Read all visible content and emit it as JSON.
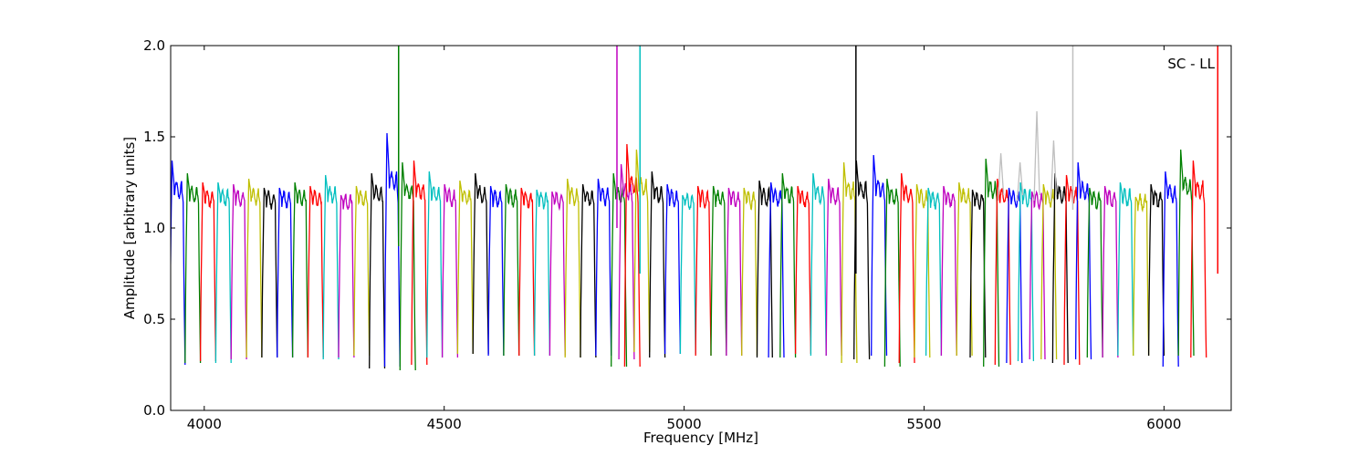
{
  "chart_data": {
    "type": "line",
    "title": "",
    "xlabel": "Frequency [MHz]",
    "ylabel": "Amplitude [arbitrary units]",
    "xlim": [
      3930,
      6140
    ],
    "ylim": [
      0,
      2.0
    ],
    "xticks": [
      4000,
      4500,
      5000,
      5500,
      6000
    ],
    "xtick_labels": [
      "4000",
      "4500",
      "5000",
      "5500",
      "6000"
    ],
    "yticks": [
      0,
      0.5,
      1.0,
      1.5,
      2.0
    ],
    "ytick_labels": [
      "0.0",
      "0.5",
      "1.0",
      "1.5",
      "2.0"
    ],
    "annotation": "SC - LL",
    "grid": false,
    "legend": "none",
    "band_width_mhz": 32,
    "channels": [
      {
        "start": 3928,
        "peak": 1.37,
        "min": 0.25,
        "color": "#0000ff"
      },
      {
        "start": 3960,
        "peak": 1.3,
        "min": 0.26,
        "color": "#008000"
      },
      {
        "start": 3992,
        "peak": 1.25,
        "min": 0.27,
        "color": "#ff0000"
      },
      {
        "start": 4024,
        "peak": 1.25,
        "min": 0.26,
        "color": "#00bfbf"
      },
      {
        "start": 4056,
        "peak": 1.24,
        "min": 0.28,
        "color": "#bf00bf"
      },
      {
        "start": 4088,
        "peak": 1.27,
        "min": 0.29,
        "color": "#bfbf00"
      },
      {
        "start": 4120,
        "peak": 1.22,
        "min": 0.29,
        "color": "#000000"
      },
      {
        "start": 4152,
        "peak": 1.22,
        "min": 0.29,
        "color": "#0000ff"
      },
      {
        "start": 4184,
        "peak": 1.25,
        "min": 0.29,
        "color": "#008000"
      },
      {
        "start": 4216,
        "peak": 1.23,
        "min": 0.29,
        "color": "#ff0000"
      },
      {
        "start": 4248,
        "peak": 1.29,
        "min": 0.28,
        "color": "#00bfbf"
      },
      {
        "start": 4280,
        "peak": 1.18,
        "min": 0.29,
        "color": "#bf00bf"
      },
      {
        "start": 4312,
        "peak": 1.23,
        "min": 0.3,
        "color": "#bfbf00"
      },
      {
        "start": 4344,
        "peak": 1.3,
        "min": 0.23,
        "color": "#000000"
      },
      {
        "start": 4376,
        "peak": 1.52,
        "min": 0.24,
        "color": "#0000ff"
      },
      {
        "start": 4408,
        "peak": 1.36,
        "min": 0.22,
        "color": "#008000"
      },
      {
        "start": 4432,
        "peak": 1.37,
        "min": 0.25,
        "color": "#ff0000"
      },
      {
        "start": 4464,
        "peak": 1.31,
        "min": 0.29,
        "color": "#00bfbf"
      },
      {
        "start": 4496,
        "peak": 1.24,
        "min": 0.29,
        "color": "#bf00bf"
      },
      {
        "start": 4528,
        "peak": 1.26,
        "min": 0.31,
        "color": "#bfbf00"
      },
      {
        "start": 4560,
        "peak": 1.3,
        "min": 0.31,
        "color": "#000000"
      },
      {
        "start": 4592,
        "peak": 1.23,
        "min": 0.3,
        "color": "#0000ff"
      },
      {
        "start": 4624,
        "peak": 1.24,
        "min": 0.3,
        "color": "#008000"
      },
      {
        "start": 4656,
        "peak": 1.22,
        "min": 0.3,
        "color": "#ff0000"
      },
      {
        "start": 4688,
        "peak": 1.21,
        "min": 0.3,
        "color": "#00bfbf"
      },
      {
        "start": 4720,
        "peak": 1.2,
        "min": 0.3,
        "color": "#bf00bf"
      },
      {
        "start": 4752,
        "peak": 1.27,
        "min": 0.29,
        "color": "#bfbf00"
      },
      {
        "start": 4784,
        "peak": 1.24,
        "min": 0.29,
        "color": "#000000"
      },
      {
        "start": 4816,
        "peak": 1.27,
        "min": 0.3,
        "color": "#0000ff"
      },
      {
        "start": 4848,
        "peak": 1.3,
        "min": 0.24,
        "color": "#008000"
      },
      {
        "start": 4864,
        "peak": 1.35,
        "min": 0.28,
        "color": "#bf00bf"
      },
      {
        "start": 4876,
        "peak": 1.46,
        "min": 0.24,
        "color": "#ff0000"
      },
      {
        "start": 4896,
        "peak": 1.43,
        "min": 0.32,
        "color": "#bfbf00"
      },
      {
        "start": 4928,
        "peak": 1.31,
        "min": 0.29,
        "color": "#000000"
      },
      {
        "start": 4960,
        "peak": 1.24,
        "min": 0.31,
        "color": "#0000ff"
      },
      {
        "start": 4992,
        "peak": 1.18,
        "min": 0.31,
        "color": "#00bfbf"
      },
      {
        "start": 5024,
        "peak": 1.23,
        "min": 0.3,
        "color": "#ff0000"
      },
      {
        "start": 5056,
        "peak": 1.23,
        "min": 0.3,
        "color": "#008000"
      },
      {
        "start": 5088,
        "peak": 1.22,
        "min": 0.3,
        "color": "#bf00bf"
      },
      {
        "start": 5120,
        "peak": 1.22,
        "min": 0.3,
        "color": "#bfbf00"
      },
      {
        "start": 5152,
        "peak": 1.26,
        "min": 0.29,
        "color": "#000000"
      },
      {
        "start": 5176,
        "peak": 1.25,
        "min": 0.29,
        "color": "#0000ff"
      },
      {
        "start": 5200,
        "peak": 1.3,
        "min": 0.29,
        "color": "#008000"
      },
      {
        "start": 5232,
        "peak": 1.23,
        "min": 0.31,
        "color": "#ff0000"
      },
      {
        "start": 5264,
        "peak": 1.3,
        "min": 0.3,
        "color": "#00bfbf"
      },
      {
        "start": 5296,
        "peak": 1.27,
        "min": 0.3,
        "color": "#bf00bf"
      },
      {
        "start": 5328,
        "peak": 1.36,
        "min": 0.26,
        "color": "#bfbf00"
      },
      {
        "start": 5354,
        "peak": 1.37,
        "min": 0.28,
        "color": "#000000"
      },
      {
        "start": 5390,
        "peak": 1.4,
        "min": 0.3,
        "color": "#0000ff"
      },
      {
        "start": 5418,
        "peak": 1.27,
        "min": 0.24,
        "color": "#008000"
      },
      {
        "start": 5448,
        "peak": 1.3,
        "min": 0.26,
        "color": "#ff0000"
      },
      {
        "start": 5480,
        "peak": 1.24,
        "min": 0.29,
        "color": "#bfbf00"
      },
      {
        "start": 5504,
        "peak": 1.22,
        "min": 0.3,
        "color": "#00bfbf"
      },
      {
        "start": 5536,
        "peak": 1.23,
        "min": 0.3,
        "color": "#bf00bf"
      },
      {
        "start": 5568,
        "peak": 1.25,
        "min": 0.3,
        "color": "#bfbf00"
      },
      {
        "start": 5596,
        "peak": 1.21,
        "min": 0.29,
        "color": "#000000"
      },
      {
        "start": 5624,
        "peak": 1.38,
        "min": 0.24,
        "color": "#008000"
      },
      {
        "start": 5648,
        "peak": 1.27,
        "min": 0.25,
        "color": "#ff0000"
      },
      {
        "start": 5672,
        "peak": 1.22,
        "min": 0.26,
        "color": "#0000ff"
      },
      {
        "start": 5696,
        "peak": 1.25,
        "min": 0.27,
        "color": "#00bfbf"
      },
      {
        "start": 5720,
        "peak": 1.2,
        "min": 0.28,
        "color": "#bf00bf"
      },
      {
        "start": 5744,
        "peak": 1.24,
        "min": 0.28,
        "color": "#bfbf00"
      },
      {
        "start": 5768,
        "peak": 1.3,
        "min": 0.26,
        "color": "#000000"
      },
      {
        "start": 5792,
        "peak": 1.29,
        "min": 0.25,
        "color": "#ff0000"
      },
      {
        "start": 5816,
        "peak": 1.36,
        "min": 0.28,
        "color": "#0000ff"
      },
      {
        "start": 5840,
        "peak": 1.22,
        "min": 0.29,
        "color": "#008000"
      },
      {
        "start": 5872,
        "peak": 1.23,
        "min": 0.29,
        "color": "#bf00bf"
      },
      {
        "start": 5904,
        "peak": 1.25,
        "min": 0.3,
        "color": "#00bfbf"
      },
      {
        "start": 5936,
        "peak": 1.17,
        "min": 0.3,
        "color": "#bfbf00"
      },
      {
        "start": 5968,
        "peak": 1.24,
        "min": 0.3,
        "color": "#000000"
      },
      {
        "start": 5998,
        "peak": 1.31,
        "min": 0.24,
        "color": "#0000ff"
      },
      {
        "start": 6030,
        "peak": 1.43,
        "min": 0.3,
        "color": "#008000"
      },
      {
        "start": 6056,
        "peak": 1.37,
        "min": 0.29,
        "color": "#ff0000"
      }
    ],
    "spikes": [
      {
        "x": 4405,
        "y_top": 2.0,
        "y_bottom": 0.9,
        "color": "#008000"
      },
      {
        "x": 4860,
        "y_top": 2.0,
        "y_bottom": 1.0,
        "color": "#bf00bf"
      },
      {
        "x": 4908,
        "y_top": 2.0,
        "y_bottom": 0.75,
        "color": "#00bfbf"
      },
      {
        "x": 5358,
        "y_top": 2.0,
        "y_bottom": 0.75,
        "color": "#000000"
      },
      {
        "x": 5810,
        "y_top": 2.0,
        "y_bottom": 1.1,
        "color": "#bfbfbf"
      },
      {
        "x": 6112,
        "y_top": 2.0,
        "y_bottom": 0.75,
        "color": "#ff0000"
      }
    ],
    "grey_spikes": [
      {
        "x": 5735,
        "y": 1.64
      },
      {
        "x": 5770,
        "y": 1.48
      },
      {
        "x": 5660,
        "y": 1.41
      },
      {
        "x": 5700,
        "y": 1.36
      }
    ]
  }
}
